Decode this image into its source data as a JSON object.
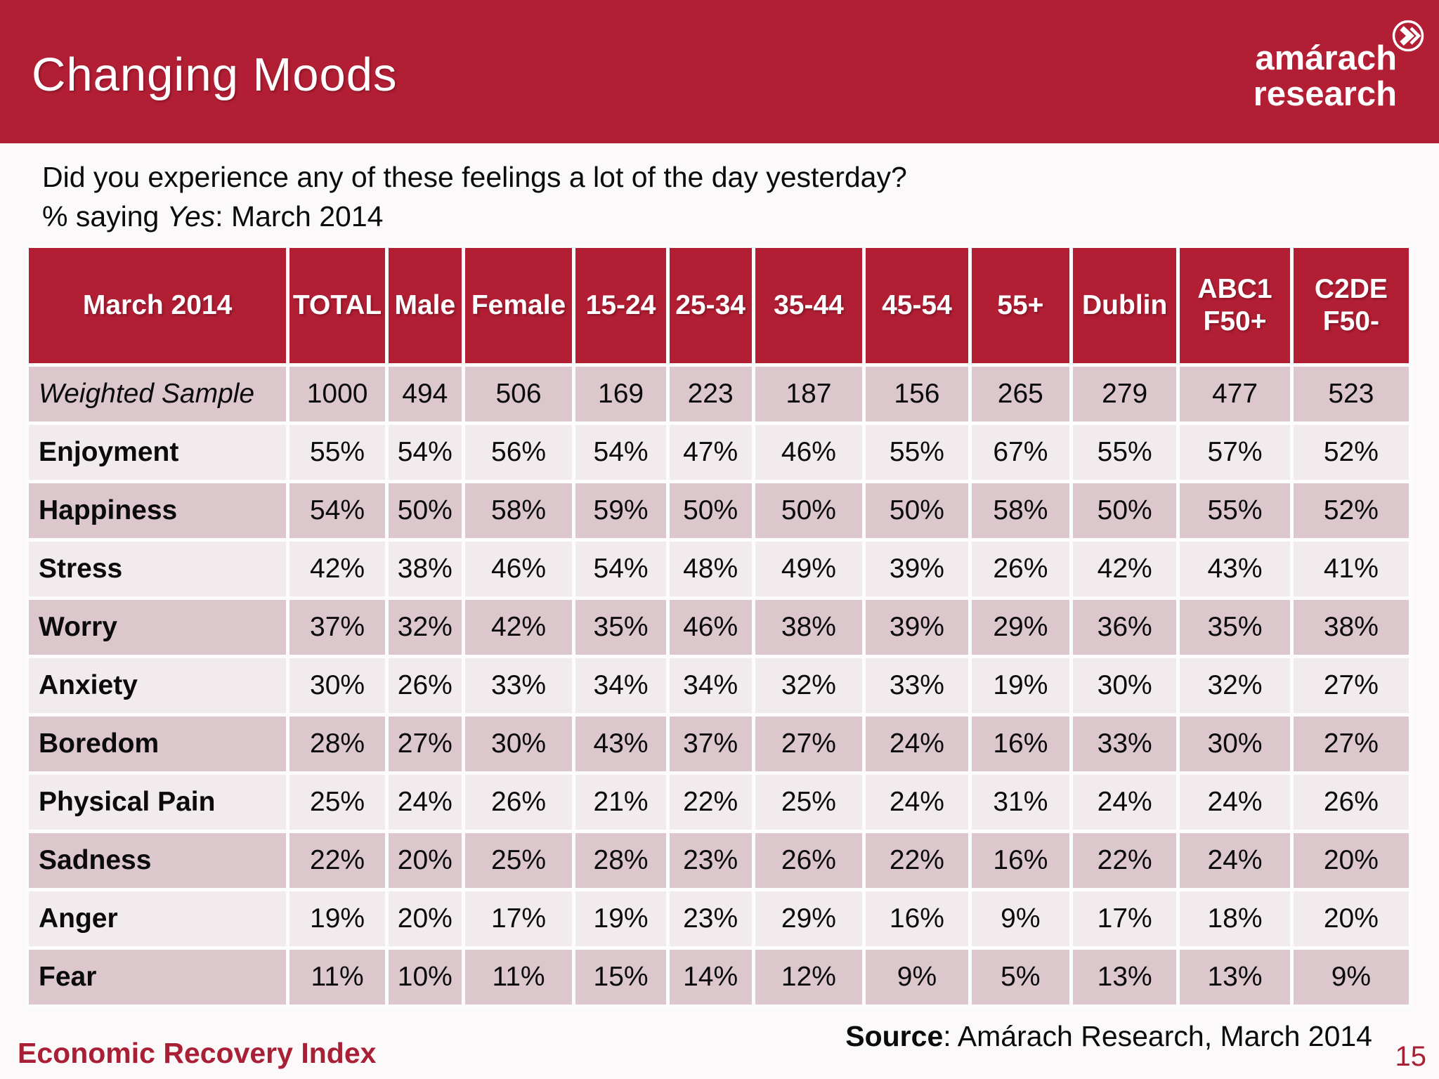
{
  "slide": {
    "title": "Changing Moods",
    "logo": {
      "line1": "amárach",
      "line2": "research",
      "icon": "double-chevron-right-circle-icon"
    },
    "question_line1": "Did you experience any of these feelings a lot of the day yesterday?",
    "question_line2_prefix": "% saying ",
    "question_line2_italic": "Yes",
    "question_line2_suffix": ": March 2014",
    "source_label": "Source",
    "source_rest": ": Amárach Research, March 2014",
    "footer_left": "Economic Recovery Index",
    "page_number": "15"
  },
  "colors": {
    "brand_red": "#b21f35",
    "row_dark_pink": "#dcc8cc",
    "row_light_pink": "#f2ebee",
    "footer_red": "#a91f35",
    "header_text": "#ffffff",
    "body_text": "#0b0b0b"
  },
  "chart_data": {
    "type": "table",
    "title": "March 2014",
    "columns": [
      {
        "label": "March 2014",
        "width_pct": 19.3
      },
      {
        "label": "TOTAL",
        "width_pct": 7.1
      },
      {
        "label": "Male",
        "width_pct": 5.4
      },
      {
        "label": "Female",
        "width_pct": 8.0
      },
      {
        "label": "15-24",
        "width_pct": 6.7
      },
      {
        "label": "25-34",
        "width_pct": 6.1
      },
      {
        "label": "35-44",
        "width_pct": 8.0
      },
      {
        "label": "45-54",
        "width_pct": 7.6
      },
      {
        "label": "55+",
        "width_pct": 7.3
      },
      {
        "label": "Dublin",
        "width_pct": 7.7
      },
      {
        "label": "ABC1\nF50+",
        "width_pct": 8.2
      },
      {
        "label": "C2DE\nF50-",
        "width_pct": 8.6
      }
    ],
    "rows": [
      {
        "label": "Weighted Sample",
        "italic": true,
        "values": [
          "1000",
          "494",
          "506",
          "169",
          "223",
          "187",
          "156",
          "265",
          "279",
          "477",
          "523"
        ]
      },
      {
        "label": "Enjoyment",
        "italic": false,
        "values": [
          "55%",
          "54%",
          "56%",
          "54%",
          "47%",
          "46%",
          "55%",
          "67%",
          "55%",
          "57%",
          "52%"
        ]
      },
      {
        "label": "Happiness",
        "italic": false,
        "values": [
          "54%",
          "50%",
          "58%",
          "59%",
          "50%",
          "50%",
          "50%",
          "58%",
          "50%",
          "55%",
          "52%"
        ]
      },
      {
        "label": "Stress",
        "italic": false,
        "values": [
          "42%",
          "38%",
          "46%",
          "54%",
          "48%",
          "49%",
          "39%",
          "26%",
          "42%",
          "43%",
          "41%"
        ]
      },
      {
        "label": "Worry",
        "italic": false,
        "values": [
          "37%",
          "32%",
          "42%",
          "35%",
          "46%",
          "38%",
          "39%",
          "29%",
          "36%",
          "35%",
          "38%"
        ]
      },
      {
        "label": "Anxiety",
        "italic": false,
        "values": [
          "30%",
          "26%",
          "33%",
          "34%",
          "34%",
          "32%",
          "33%",
          "19%",
          "30%",
          "32%",
          "27%"
        ]
      },
      {
        "label": "Boredom",
        "italic": false,
        "values": [
          "28%",
          "27%",
          "30%",
          "43%",
          "37%",
          "27%",
          "24%",
          "16%",
          "33%",
          "30%",
          "27%"
        ]
      },
      {
        "label": "Physical Pain",
        "italic": false,
        "values": [
          "25%",
          "24%",
          "26%",
          "21%",
          "22%",
          "25%",
          "24%",
          "31%",
          "24%",
          "24%",
          "26%"
        ]
      },
      {
        "label": "Sadness",
        "italic": false,
        "values": [
          "22%",
          "20%",
          "25%",
          "28%",
          "23%",
          "26%",
          "22%",
          "16%",
          "22%",
          "24%",
          "20%"
        ]
      },
      {
        "label": "Anger",
        "italic": false,
        "values": [
          "19%",
          "20%",
          "17%",
          "19%",
          "23%",
          "29%",
          "16%",
          "9%",
          "17%",
          "18%",
          "20%"
        ]
      },
      {
        "label": "Fear",
        "italic": false,
        "values": [
          "11%",
          "10%",
          "11%",
          "15%",
          "14%",
          "12%",
          "9%",
          "5%",
          "13%",
          "13%",
          "9%"
        ]
      }
    ]
  }
}
